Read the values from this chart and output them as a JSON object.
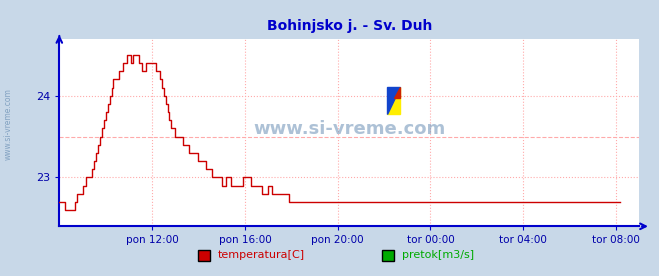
{
  "title": "Bohinjsko j. - Sv. Duh",
  "title_color": "#0000cc",
  "title_fontsize": 10,
  "outer_bg_color": "#c8d8e8",
  "plot_bg_color": "#ffffff",
  "axis_color": "#0000cc",
  "grid_color": "#ffaaaa",
  "watermark": "www.si-vreme.com",
  "watermark_color": "#7799bb",
  "watermark_side": "www.si-vreme.com",
  "x_tick_labels": [
    "pon 12:00",
    "pon 16:00",
    "pon 20:00",
    "tor 00:00",
    "tor 04:00",
    "tor 08:00"
  ],
  "x_tick_positions": [
    48,
    96,
    144,
    192,
    240,
    288
  ],
  "y_ticks": [
    23,
    24
  ],
  "ylim": [
    22.4,
    24.7
  ],
  "xlim": [
    0,
    300
  ],
  "tick_label_color": "#0000aa",
  "line_color": "#cc0000",
  "dashed_line_y": 23.5,
  "legend_items": [
    {
      "label": "temperatura[C]",
      "color": "#cc0000"
    },
    {
      "label": "pretok[m3/s]",
      "color": "#00aa00"
    }
  ],
  "temperature_data": [
    22.7,
    22.7,
    22.7,
    22.6,
    22.6,
    22.6,
    22.6,
    22.6,
    22.7,
    22.8,
    22.8,
    22.8,
    22.9,
    22.9,
    23.0,
    23.0,
    23.0,
    23.1,
    23.2,
    23.3,
    23.4,
    23.5,
    23.6,
    23.7,
    23.8,
    23.9,
    24.0,
    24.1,
    24.2,
    24.2,
    24.2,
    24.3,
    24.3,
    24.4,
    24.4,
    24.5,
    24.5,
    24.4,
    24.5,
    24.5,
    24.5,
    24.4,
    24.4,
    24.3,
    24.3,
    24.4,
    24.4,
    24.4,
    24.4,
    24.4,
    24.3,
    24.3,
    24.2,
    24.1,
    24.0,
    23.9,
    23.8,
    23.7,
    23.6,
    23.6,
    23.5,
    23.5,
    23.5,
    23.5,
    23.4,
    23.4,
    23.4,
    23.3,
    23.3,
    23.3,
    23.3,
    23.3,
    23.2,
    23.2,
    23.2,
    23.2,
    23.1,
    23.1,
    23.1,
    23.0,
    23.0,
    23.0,
    23.0,
    23.0,
    22.9,
    22.9,
    23.0,
    23.0,
    23.0,
    22.9,
    22.9,
    22.9,
    22.9,
    22.9,
    22.9,
    23.0,
    23.0,
    23.0,
    23.0,
    22.9,
    22.9,
    22.9,
    22.9,
    22.9,
    22.9,
    22.8,
    22.8,
    22.8,
    22.9,
    22.9,
    22.8,
    22.8,
    22.8,
    22.8,
    22.8,
    22.8,
    22.8,
    22.8,
    22.8,
    22.7,
    22.7,
    22.7,
    22.7,
    22.7,
    22.7,
    22.7,
    22.7,
    22.7,
    22.7,
    22.7,
    22.7,
    22.7,
    22.7,
    22.7,
    22.7,
    22.7,
    22.7,
    22.7,
    22.7,
    22.7,
    22.7,
    22.7,
    22.7,
    22.7,
    22.7,
    22.7,
    22.7,
    22.7,
    22.7,
    22.7,
    22.7,
    22.7,
    22.7,
    22.7,
    22.7,
    22.7,
    22.7,
    22.7,
    22.7,
    22.7,
    22.7,
    22.7,
    22.7,
    22.7,
    22.7,
    22.7,
    22.7,
    22.7,
    22.7,
    22.7,
    22.7,
    22.7,
    22.7,
    22.7,
    22.7,
    22.7,
    22.7,
    22.7,
    22.7,
    22.7,
    22.7,
    22.7,
    22.7,
    22.7,
    22.7,
    22.7,
    22.7,
    22.7,
    22.7,
    22.7,
    22.7,
    22.7,
    22.7,
    22.7,
    22.7,
    22.7,
    22.7,
    22.7,
    22.7,
    22.7,
    22.7,
    22.7,
    22.7,
    22.7,
    22.7,
    22.7,
    22.7,
    22.7,
    22.7,
    22.7,
    22.7,
    22.7,
    22.7,
    22.7,
    22.7,
    22.7,
    22.7,
    22.7,
    22.7,
    22.7,
    22.7,
    22.7,
    22.7,
    22.7,
    22.7,
    22.7,
    22.7,
    22.7,
    22.7,
    22.7,
    22.7,
    22.7,
    22.7,
    22.7,
    22.7,
    22.7,
    22.7,
    22.7,
    22.7,
    22.7,
    22.7,
    22.7,
    22.7,
    22.7,
    22.7,
    22.7,
    22.7,
    22.7,
    22.7,
    22.7,
    22.7,
    22.7,
    22.7,
    22.7,
    22.7,
    22.7,
    22.7,
    22.7,
    22.7,
    22.7,
    22.7,
    22.7,
    22.7,
    22.7,
    22.7,
    22.7,
    22.7,
    22.7,
    22.7,
    22.7,
    22.7,
    22.7,
    22.7,
    22.7,
    22.7,
    22.7,
    22.7,
    22.7,
    22.7,
    22.7,
    22.7,
    22.7,
    22.7,
    22.7,
    22.7,
    22.7,
    22.7,
    22.7,
    22.7,
    22.7,
    22.7
  ]
}
